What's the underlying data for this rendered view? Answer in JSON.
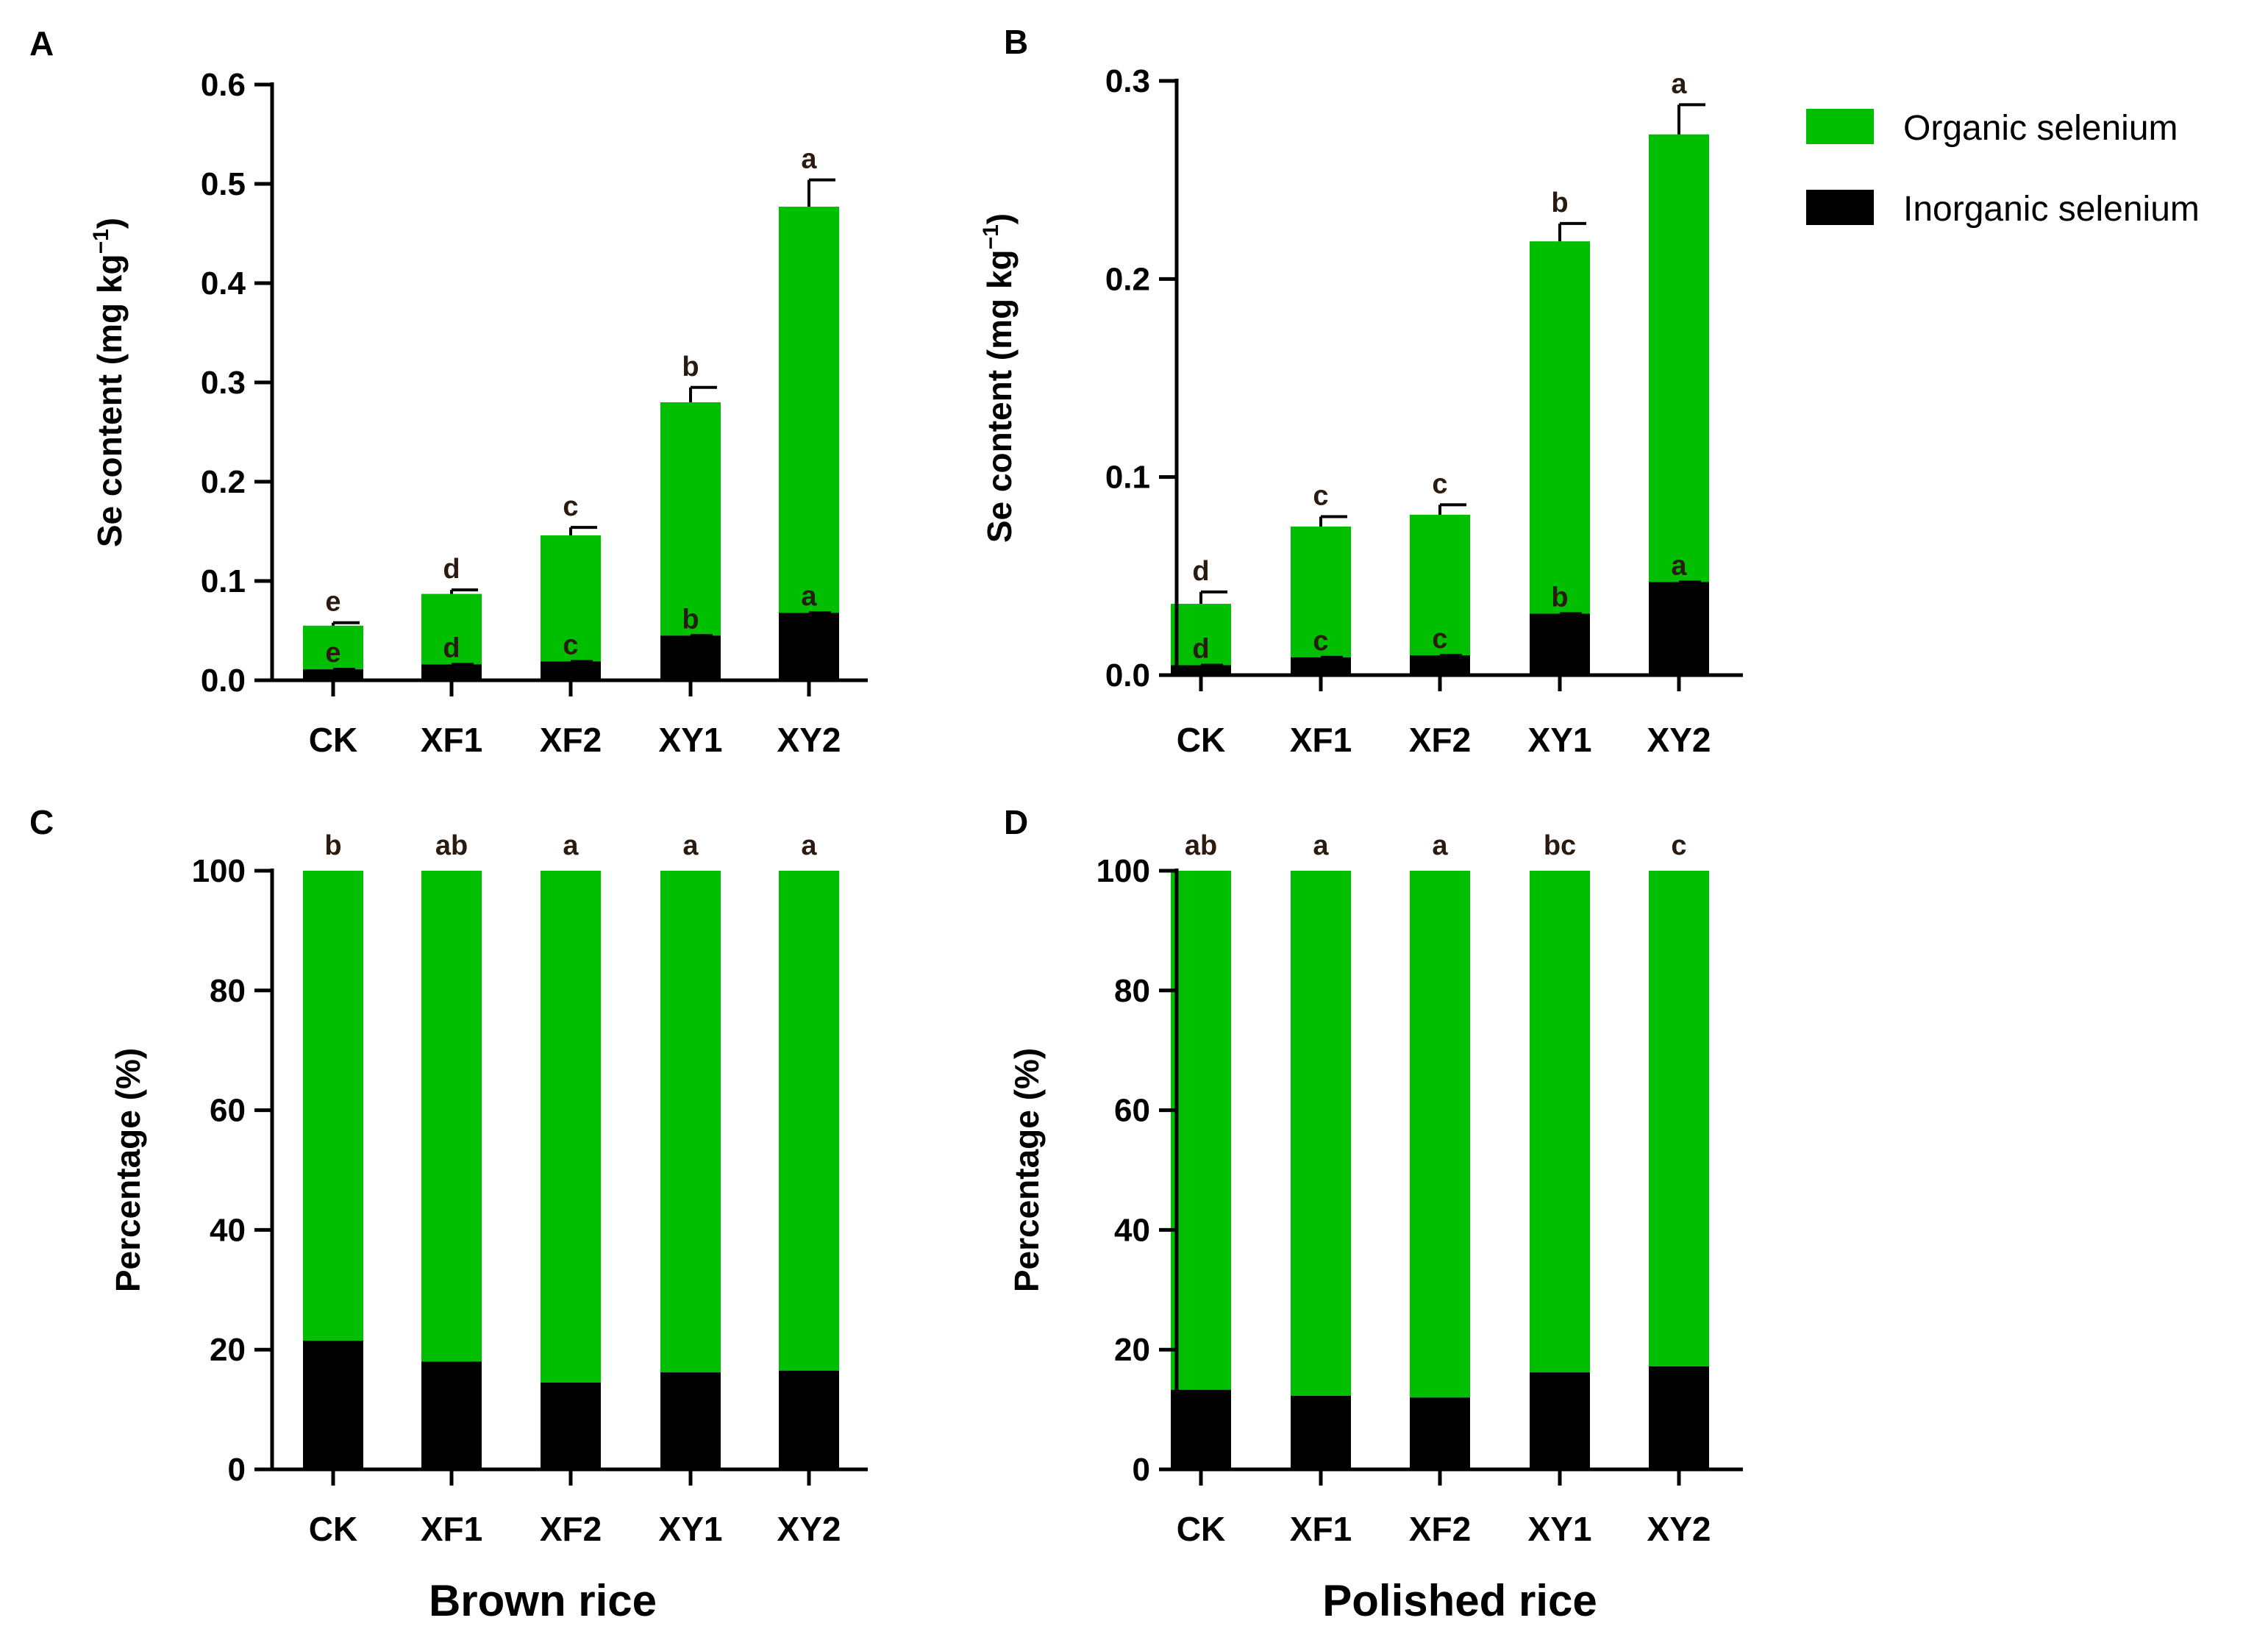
{
  "colors": {
    "organic": "#00bf00",
    "inorganic": "#000000"
  },
  "legend": {
    "organic": "Organic selenium",
    "inorganic": "Inorganic selenium"
  },
  "xtitles": {
    "left": "Brown rice",
    "right": "Polished rice"
  },
  "chart_data": [
    {
      "panel": "A",
      "type": "bar",
      "stacked": true,
      "categories": [
        "CK",
        "XF1",
        "XF2",
        "XY1",
        "XY2"
      ],
      "series": [
        {
          "name": "Inorganic selenium",
          "values": [
            0.011,
            0.016,
            0.019,
            0.045,
            0.068
          ],
          "letters": [
            "e",
            "d",
            "c",
            "b",
            "a"
          ]
        },
        {
          "name": "Organic selenium",
          "values": [
            0.044,
            0.071,
            0.127,
            0.235,
            0.409
          ],
          "letters": [
            "e",
            "d",
            "c",
            "b",
            "a"
          ]
        }
      ],
      "error": [
        0.003,
        0.004,
        0.008,
        0.015,
        0.027
      ],
      "ylabel": "Se content (mg kg",
      "ylabel_sup": "−1",
      "ylabel_close": ")",
      "ylim": [
        0,
        0.6
      ],
      "yticks": [
        "0.0",
        "0.1",
        "0.2",
        "0.3",
        "0.4",
        "0.5",
        "0.6"
      ]
    },
    {
      "panel": "B",
      "type": "bar",
      "stacked": true,
      "categories": [
        "CK",
        "XF1",
        "XF2",
        "XY1",
        "XY2"
      ],
      "series": [
        {
          "name": "Inorganic selenium",
          "values": [
            0.005,
            0.009,
            0.01,
            0.031,
            0.047
          ],
          "letters": [
            "d",
            "c",
            "c",
            "b",
            "a"
          ]
        },
        {
          "name": "Organic selenium",
          "values": [
            0.031,
            0.066,
            0.071,
            0.188,
            0.226
          ],
          "letters": [
            "d",
            "c",
            "c",
            "b",
            "a"
          ]
        }
      ],
      "error": [
        0.006,
        0.005,
        0.005,
        0.009,
        0.015
      ],
      "ylabel": "Se content (mg kg",
      "ylabel_sup": "−1",
      "ylabel_close": ")",
      "ylim": [
        0,
        0.3
      ],
      "yticks": [
        "0.0",
        "0.1",
        "0.2",
        "0.3"
      ]
    },
    {
      "panel": "C",
      "type": "bar",
      "stacked": true,
      "categories": [
        "CK",
        "XF1",
        "XF2",
        "XY1",
        "XY2"
      ],
      "series": [
        {
          "name": "Inorganic selenium",
          "values": [
            21.5,
            18,
            14.5,
            16.2,
            16.5
          ]
        },
        {
          "name": "Organic selenium",
          "values": [
            78.5,
            82,
            85.5,
            83.8,
            83.5
          ]
        }
      ],
      "top_letters": [
        "b",
        "ab",
        "a",
        "a",
        "a"
      ],
      "ylabel": "Percentage (%)",
      "ylim": [
        0,
        100
      ],
      "yticks": [
        "0",
        "20",
        "40",
        "60",
        "80",
        "100"
      ]
    },
    {
      "panel": "D",
      "type": "bar",
      "stacked": true,
      "categories": [
        "CK",
        "XF1",
        "XF2",
        "XY1",
        "XY2"
      ],
      "series": [
        {
          "name": "Inorganic selenium",
          "values": [
            13.3,
            12.3,
            12,
            16.2,
            17.2
          ]
        },
        {
          "name": "Organic selenium",
          "values": [
            86.7,
            87.7,
            88,
            83.8,
            82.8
          ]
        }
      ],
      "top_letters": [
        "ab",
        "a",
        "a",
        "bc",
        "c"
      ],
      "ylabel": "Percentage (%)",
      "ylim": [
        0,
        100
      ],
      "yticks": [
        "0",
        "20",
        "40",
        "60",
        "80",
        "100"
      ]
    }
  ]
}
